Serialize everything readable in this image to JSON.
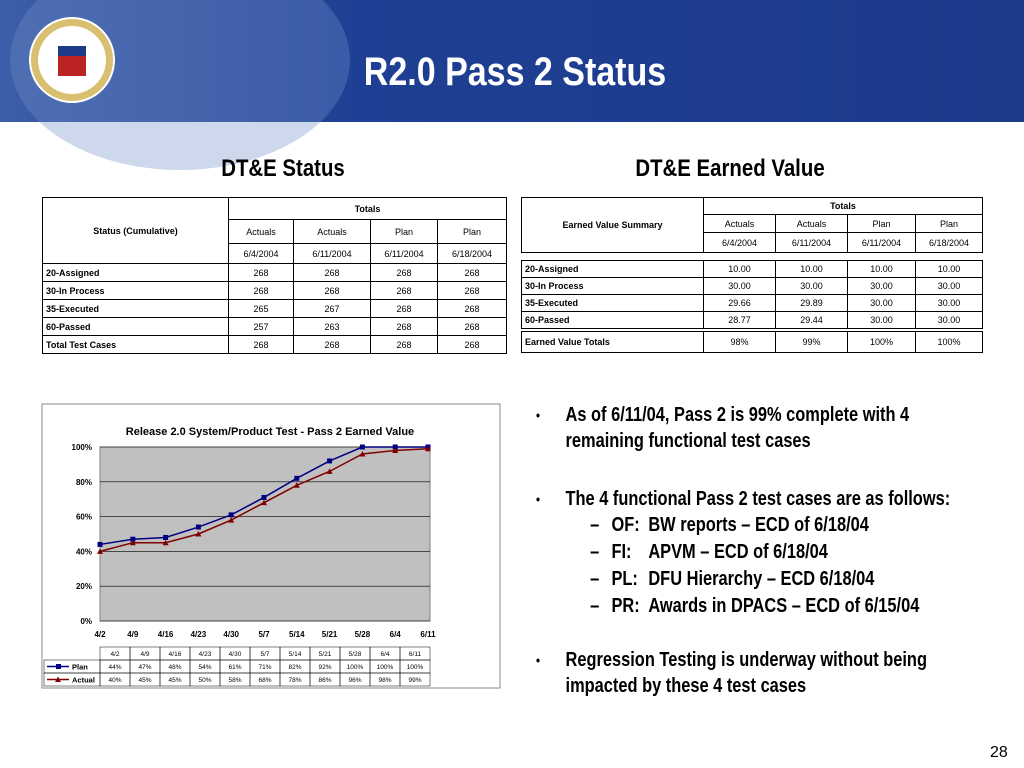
{
  "header": {
    "title": "R2.0 Pass 2 Status"
  },
  "left_table": {
    "title": "DT&E Status",
    "corner": "Status (Cumulative)",
    "group": "Totals",
    "columns": [
      "Actuals",
      "Actuals",
      "Plan",
      "Plan"
    ],
    "dates": [
      "6/4/2004",
      "6/11/2004",
      "6/11/2004",
      "6/18/2004"
    ],
    "rows": [
      [
        "20-Assigned",
        "268",
        "268",
        "268",
        "268"
      ],
      [
        "30-In Process",
        "268",
        "268",
        "268",
        "268"
      ],
      [
        "35-Executed",
        "265",
        "267",
        "268",
        "268"
      ],
      [
        "60-Passed",
        "257",
        "263",
        "268",
        "268"
      ]
    ],
    "total": [
      "Total Test Cases",
      "268",
      "268",
      "268",
      "268"
    ]
  },
  "right_table": {
    "title": "DT&E Earned Value",
    "corner": "Earned Value Summary",
    "group": "Totals",
    "columns": [
      "Actuals",
      "Actuals",
      "Plan",
      "Plan"
    ],
    "dates": [
      "6/4/2004",
      "6/11/2004",
      "6/11/2004",
      "6/18/2004"
    ],
    "rows": [
      [
        "20-Assigned",
        "10.00",
        "10.00",
        "10.00",
        "10.00"
      ],
      [
        "30-In Process",
        "30.00",
        "30.00",
        "30.00",
        "30.00"
      ],
      [
        "35-Executed",
        "29.66",
        "29.89",
        "30.00",
        "30.00"
      ],
      [
        "60-Passed",
        "28.77",
        "29.44",
        "30.00",
        "30.00"
      ]
    ],
    "total": [
      "Earned Value Totals",
      "98%",
      "99%",
      "100%",
      "100%"
    ]
  },
  "chart_data": {
    "type": "line",
    "title": "Release 2.0 System/Product Test - Pass 2 Earned Value",
    "categories": [
      "4/2",
      "4/9",
      "4/16",
      "4/23",
      "4/30",
      "5/7",
      "5/14",
      "5/21",
      "5/28",
      "6/4",
      "6/11"
    ],
    "series": [
      {
        "name": "Plan",
        "color": "#000080",
        "marker": "square",
        "values": [
          44,
          47,
          48,
          54,
          61,
          71,
          82,
          92,
          100,
          100,
          100
        ],
        "value_labels": [
          "44%",
          "47%",
          "48%",
          "54%",
          "61%",
          "71%",
          "82%",
          "92%",
          "100%",
          "100%",
          "100%"
        ]
      },
      {
        "name": "Actual",
        "color": "#800000",
        "marker": "triangle",
        "values": [
          40,
          45,
          45,
          50,
          58,
          68,
          78,
          86,
          96,
          98,
          99
        ],
        "value_labels": [
          "40%",
          "45%",
          "45%",
          "50%",
          "58%",
          "68%",
          "78%",
          "86%",
          "96%",
          "98%",
          "99%"
        ]
      }
    ],
    "ylim": [
      0,
      100
    ],
    "yticks": [
      {
        "value": 0,
        "label": "0%"
      },
      {
        "value": 20,
        "label": "20%"
      },
      {
        "value": 40,
        "label": "40%"
      },
      {
        "value": 60,
        "label": "60%"
      },
      {
        "value": 80,
        "label": "80%"
      },
      {
        "value": 100,
        "label": "100%"
      }
    ],
    "grid": true
  },
  "bullets": [
    {
      "text": "As of 6/11/04, Pass 2 is 99% complete with 4 remaining functional test cases"
    },
    {
      "text": "The 4 functional Pass 2 test cases are as follows:",
      "items": [
        {
          "code": "OF:",
          "text": "BW reports – ECD of 6/18/04"
        },
        {
          "code": "FI:",
          "text": "APVM – ECD of 6/18/04"
        },
        {
          "code": "PL:",
          "text": "DFU Hierarchy – ECD 6/18/04"
        },
        {
          "code": "PR:",
          "text": "Awards in DPACS – ECD of 6/15/04"
        }
      ]
    },
    {
      "text": "Regression Testing is underway without being impacted by these 4 test cases"
    }
  ],
  "page_number": "28"
}
